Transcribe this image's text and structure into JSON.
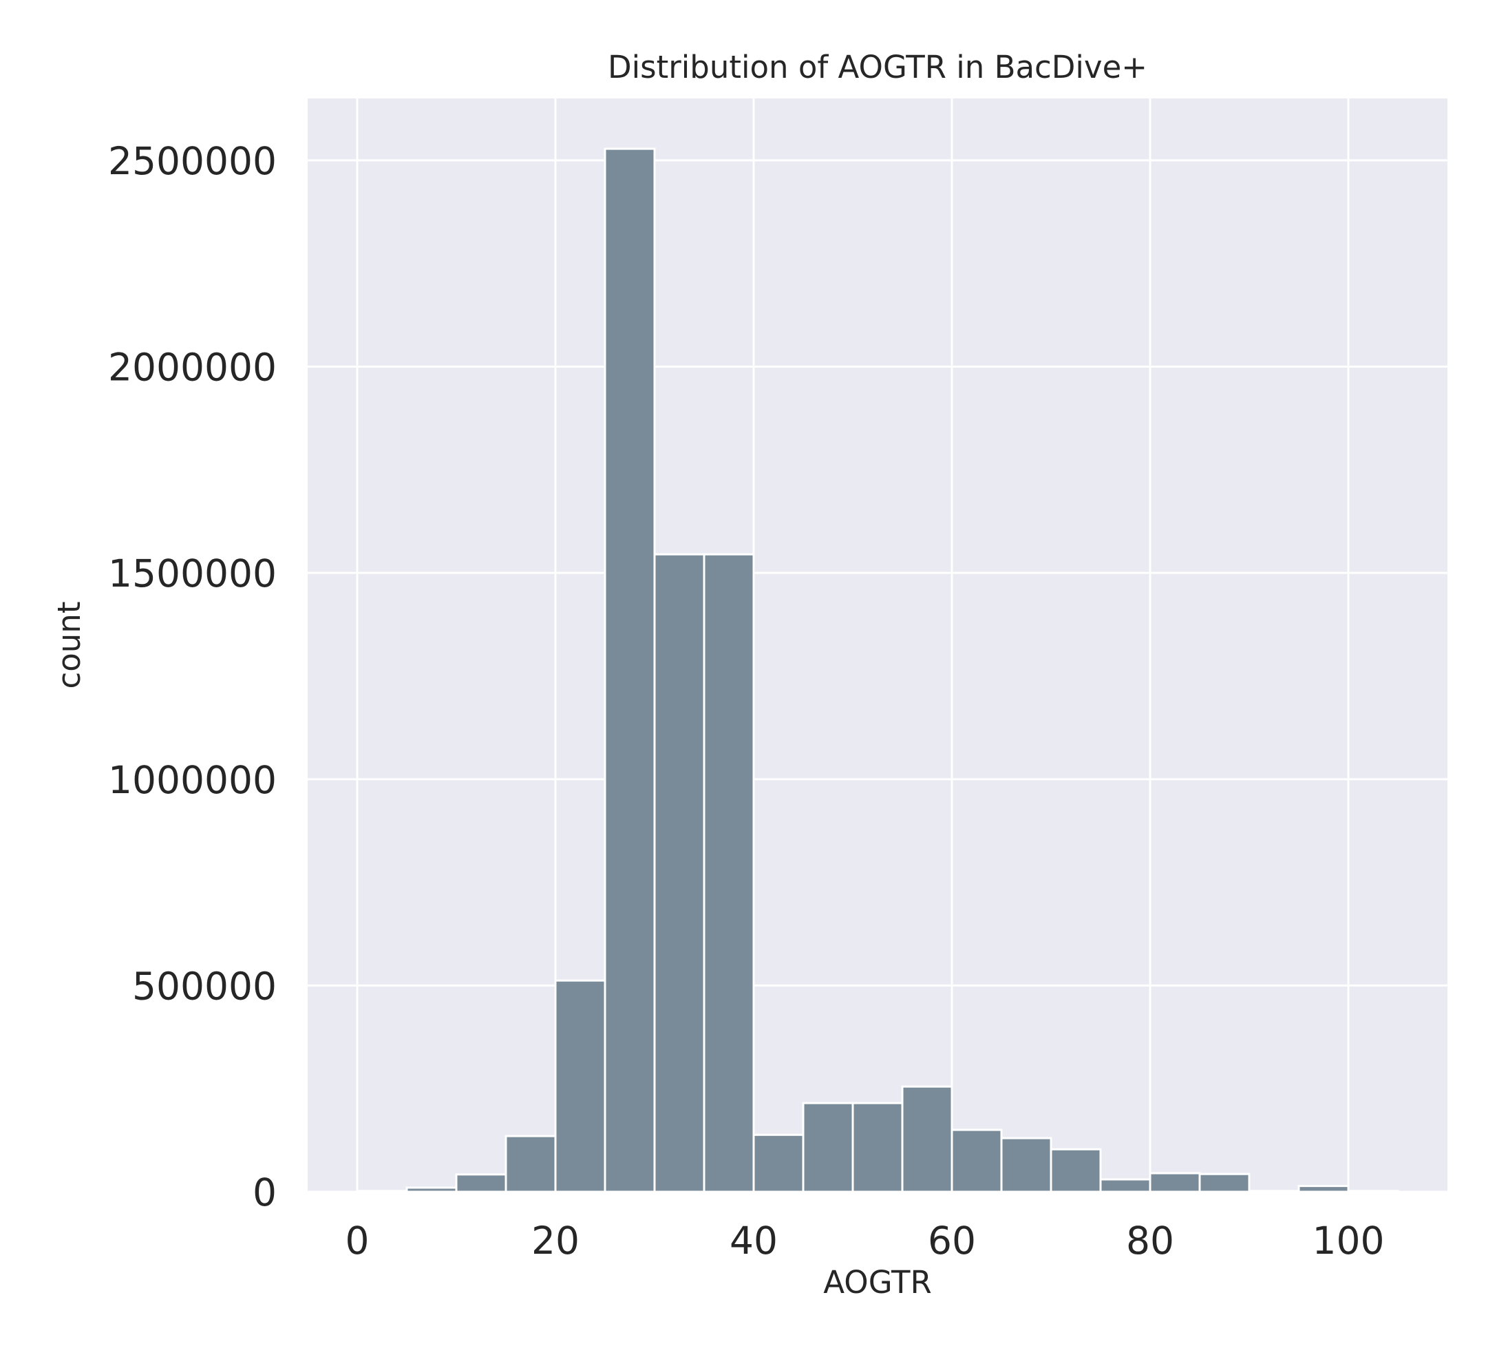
{
  "chart_data": {
    "type": "bar",
    "title": "Distribution of AOGTR in BacDive+",
    "xlabel": "AOGTR",
    "ylabel": "count",
    "xlim": [
      -5,
      110
    ],
    "ylim": [
      0,
      2650000
    ],
    "xticks": [
      0,
      20,
      40,
      60,
      80,
      100
    ],
    "xtick_labels": [
      "0",
      "20",
      "40",
      "60",
      "80",
      "100"
    ],
    "yticks": [
      0,
      500000,
      1000000,
      1500000,
      2000000,
      2500000
    ],
    "ytick_labels": [
      "0",
      "500000",
      "1000000",
      "1500000",
      "2000000",
      "2500000"
    ],
    "grid": true,
    "bin_width": 5,
    "bins": [
      {
        "x0": 0,
        "x1": 5,
        "value": 2000
      },
      {
        "x0": 5,
        "x1": 10,
        "value": 10000
      },
      {
        "x0": 10,
        "x1": 15,
        "value": 42000
      },
      {
        "x0": 15,
        "x1": 20,
        "value": 135000
      },
      {
        "x0": 20,
        "x1": 25,
        "value": 512000
      },
      {
        "x0": 25,
        "x1": 30,
        "value": 2528000
      },
      {
        "x0": 30,
        "x1": 35,
        "value": 1545000
      },
      {
        "x0": 35,
        "x1": 40,
        "value": 1545000
      },
      {
        "x0": 40,
        "x1": 45,
        "value": 138000
      },
      {
        "x0": 45,
        "x1": 50,
        "value": 215000
      },
      {
        "x0": 50,
        "x1": 55,
        "value": 215000
      },
      {
        "x0": 55,
        "x1": 60,
        "value": 255000
      },
      {
        "x0": 60,
        "x1": 65,
        "value": 150000
      },
      {
        "x0": 65,
        "x1": 70,
        "value": 130000
      },
      {
        "x0": 70,
        "x1": 75,
        "value": 103000
      },
      {
        "x0": 75,
        "x1": 80,
        "value": 30000
      },
      {
        "x0": 80,
        "x1": 85,
        "value": 45000
      },
      {
        "x0": 85,
        "x1": 90,
        "value": 43000
      },
      {
        "x0": 90,
        "x1": 95,
        "value": 2000
      },
      {
        "x0": 95,
        "x1": 100,
        "value": 14000
      },
      {
        "x0": 100,
        "x1": 105,
        "value": 2000
      }
    ],
    "colors": {
      "bar": "#798a99",
      "bar_edge": "#ffffff",
      "plot_background": "#eaeaf2",
      "grid": "#ffffff",
      "text": "#262626"
    }
  }
}
